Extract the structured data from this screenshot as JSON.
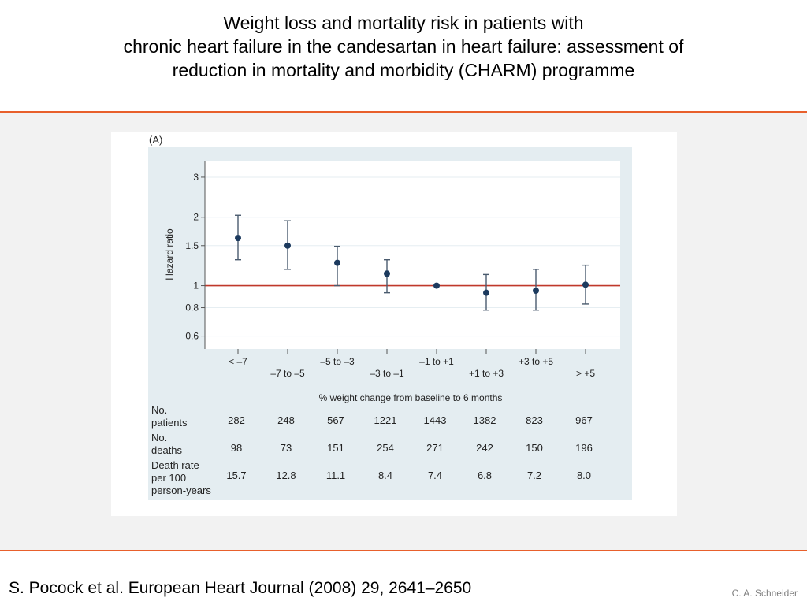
{
  "slide": {
    "title_lines": [
      "Weight loss and mortality risk in patients with",
      "chronic heart failure in the candesartan in heart failure: assessment of",
      "reduction in mortality and morbidity (CHARM) programme"
    ],
    "citation": "S. Pocock et al. European Heart Journal (2008) 29, 2641–2650",
    "author": "C. A. Schneider",
    "accent_color": "#e8602c"
  },
  "chart_data": {
    "type": "scatter",
    "panel_label": "(A)",
    "ylabel": "Hazard ratio",
    "xlabel": "% weight change from baseline to 6 months",
    "y_scale": "log",
    "ylim": [
      0.57,
      3.3
    ],
    "yticks": [
      "3",
      "2",
      "1.5",
      "1",
      "0.8",
      "0.6"
    ],
    "categories": [
      "< –7",
      "–7 to –5",
      "–5 to –3",
      "–3 to –1",
      "–1 to +1",
      "+1 to +3",
      "+3 to +5",
      "> +5"
    ],
    "hazard_ratio": [
      1.62,
      1.5,
      1.26,
      1.13,
      1.0,
      0.93,
      0.95,
      1.01
    ],
    "ci_lower": [
      1.3,
      1.18,
      1.0,
      0.93,
      1.0,
      0.78,
      0.78,
      0.83
    ],
    "ci_upper": [
      2.04,
      1.93,
      1.49,
      1.3,
      1.0,
      1.12,
      1.18,
      1.23
    ],
    "reference_line": 1,
    "reference_color": "#c0392b",
    "point_color": "#1c3a5e",
    "plot_background": "#ffffff",
    "panel_background": "#e4edf1",
    "grid": true,
    "table": {
      "row_labels": [
        [
          "No.",
          "patients"
        ],
        [
          "No.",
          "deaths"
        ],
        [
          "Death rate",
          "per 100",
          "person-years"
        ]
      ],
      "rows": [
        [
          "282",
          "248",
          "567",
          "1221",
          "1443",
          "1382",
          "823",
          "967"
        ],
        [
          "98",
          "73",
          "151",
          "254",
          "271",
          "242",
          "150",
          "196"
        ],
        [
          "15.7",
          "12.8",
          "11.1",
          "8.4",
          "7.4",
          "6.8",
          "7.2",
          "8.0"
        ]
      ]
    }
  }
}
